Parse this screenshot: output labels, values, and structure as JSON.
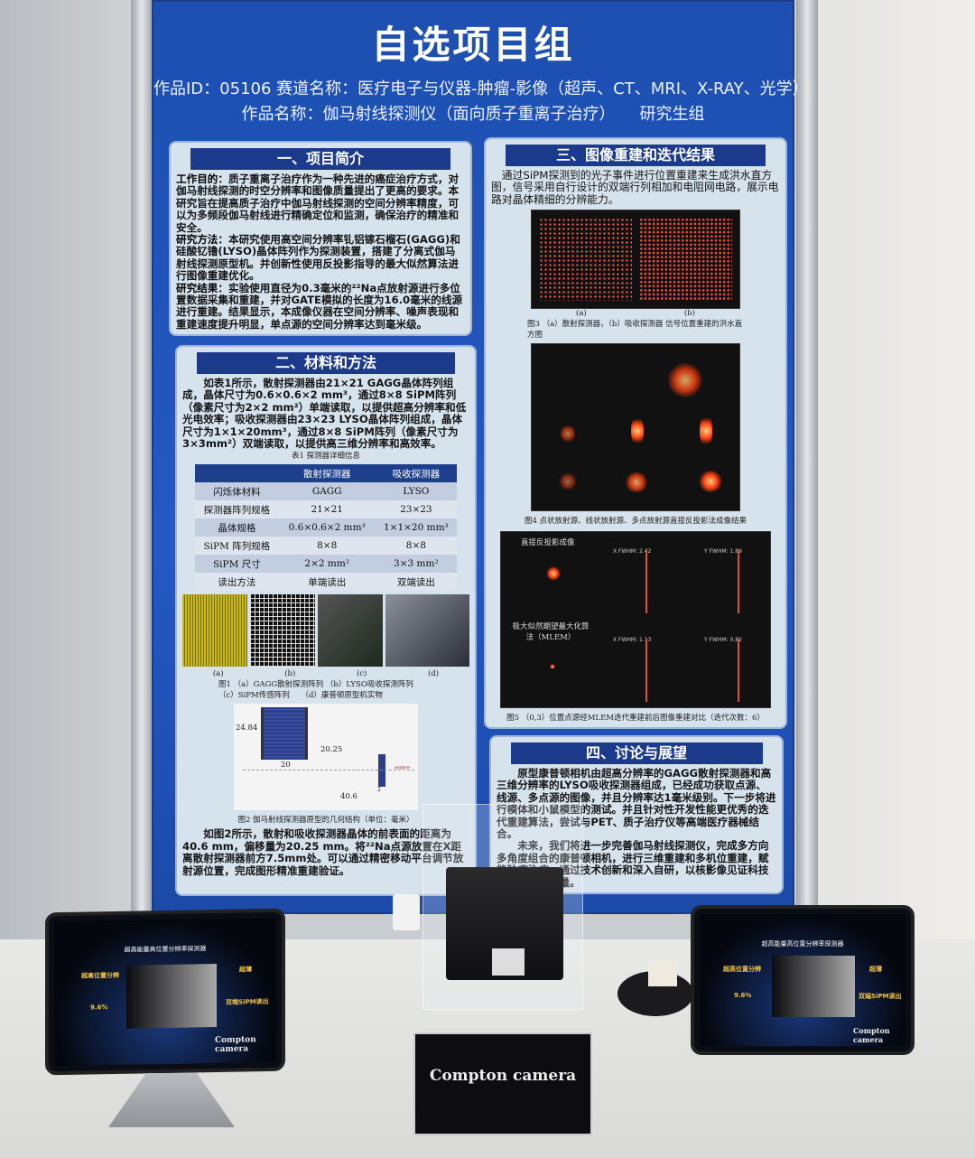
{
  "poster": {
    "title": "自选项目组",
    "line_id": "作品ID：05106 赛道名称：医疗电子与仪器-肿瘤-影像（超声、CT、MRI、X-RAY、光学）",
    "line_name": "作品名称：伽马射线探测仪（面向质子重离子治疗）　　研究生组",
    "s1": {
      "heading": "一、项目简介",
      "p1_label": "工作目的：",
      "p1": "质子重离子治疗作为一种先进的癌症治疗方式，对伽马射线探测的时空分辨率和图像质量提出了更高的要求。本研究旨在提高质子治疗中伽马射线探测的空间分辨率精度，可以为多频段伽马射线进行精确定位和监测，确保治疗的精准和安全。",
      "p2_label": "研究方法：",
      "p2": "本研究使用高空间分辨率钆铝镓石榴石(GAGG)和硅酸钇镥(LYSO)晶体阵列作为探测装置，搭建了分离式伽马射线探测原型机。并创新性使用反投影指导的最大似然算法进行图像重建优化。",
      "p3_label": "研究结果：",
      "p3": "实验使用直径为0.3毫米的²²Na点放射源进行多位置数据采集和重建，并对GATE模拟的长度为16.0毫米的线源进行重建。结果显示，本成像仪器在空间分辨率、噪声表现和重建速度提升明显，单点源的空间分辨率达到毫米级。"
    },
    "s2": {
      "heading": "二、材料和方法",
      "p1": "如表1所示，散射探测器由21×21 GAGG晶体阵列组成，晶体尺寸为0.6×0.6×2 mm³，通过8×8 SiPM阵列（像素尺寸为2×2 mm²）单端读取，以提供超高分辨率和低光电效率；吸收探测器由23×23 LYSO晶体阵列组成，晶体尺寸为1×1×20mm³，通过8×8 SiPM阵列（像素尺寸为3×3mm²）双端读取，以提供高三维分辨率和高效率。",
      "table_caption": "表1 探测器详细信息",
      "table_headers": [
        "",
        "散射探测器",
        "吸收探测器"
      ],
      "table_rows": [
        [
          "闪烁体材料",
          "GAGG",
          "LYSO"
        ],
        [
          "探测器阵列规格",
          "21×21",
          "23×23"
        ],
        [
          "晶体规格",
          "0.6×0.6×2 mm³",
          "1×1×20 mm³"
        ],
        [
          "SiPM 阵列规格",
          "8×8",
          "8×8"
        ],
        [
          "SiPM 尺寸",
          "2×2 mm²",
          "3×3 mm²"
        ],
        [
          "读出方法",
          "单端读出",
          "双端读出"
        ]
      ],
      "fig1_labels": [
        "(a)",
        "(b)",
        "(c)",
        "(d)"
      ],
      "fig1_caption_1": "图1 （a）GAGG散射探测阵列 （b）LYSO吸收探测阵列",
      "fig1_caption_2": "（c）SiPM传感阵列　　（d）康普顿原型机实物",
      "fig2_dims": {
        "height": "24.84",
        "offset": "20.25",
        "width": "20",
        "distance": "40.6",
        "thickness": "2",
        "source": "source"
      },
      "fig2_caption": "图2 伽马射线探测器原型的几何结构（单位：毫米）",
      "p2": "如图2所示，散射和吸收探测器晶体的前表面的距离为40.6 mm，偏移量为20.25 mm。将²²Na点源放置在X距离散射探测器前方7.5mm处。可以通过精密移动平台调节放射源位置，完成图形精准重建验证。"
    },
    "s3": {
      "heading": "三、图像重建和迭代结果",
      "p1": "通过SiPM探测到的光子事件进行位置重建来生成洪水直方图，信号采用自行设计的双端行列相加和电阻网电路，展示电路对晶体精细的分辨能力。",
      "fig3_labels": [
        "(a)",
        "(b)"
      ],
      "fig3_caption": "图3 （a）散射探测器，（b）吸收探测器 信号位置重建的洪水直方图",
      "fig4_caption": "图4 点状放射源、线状放射源、多点放射源直接反投影法成像结果",
      "fig5_title_top": "直接反投影成像",
      "fig5_title_bottom": "极大似然期望最大化算法（MLEM）",
      "fig5_fwhm": [
        "X FWHM: 2.42",
        "Y FWHM: 1.89",
        "X FWHM: 1.13",
        "Y FWHM: 0.82"
      ],
      "fig5_caption": "图5 （0,3）位置点源经MLEM迭代重建前后图像重建对比（迭代次数：6）"
    },
    "s4": {
      "heading": "四、讨论与展望",
      "p1": "原型康普顿相机由超高分辨率的GAGG散射探测器和高三维分辨率的LYSO吸收探测器组成，已经成功获取点源、线源、多点源的图像，并且分辨率达1毫米级别。下一步将进行模体和小鼠模型的测试。并且针对性开发性能更优秀的迭代重建算法，尝试与PET、质子治疗仪等高端医疗器械结合。",
      "p2": "未来，我们将进一步完善伽马射线探测仪，完成多方向多角度组合的康普顿相机，进行三维重建和多机位重建，赋能肿瘤治疗。通过技术创新和深入自研，以核影像见证科技治愈生命的能量。"
    }
  },
  "tablet": {
    "title": "超高能量高位置分辨率探测器",
    "left_feature": "超高位置分辨",
    "percent": "9.6%",
    "right_feature_1": "超薄",
    "right_feature_2": "双端SiPM读出",
    "brand": "Compton camera"
  },
  "sign": {
    "title": "Compton camera"
  },
  "colors": {
    "poster_blue": "#2459c4",
    "heading_navy": "#1c3a8c",
    "panel_bg": "#d6e2ec"
  }
}
